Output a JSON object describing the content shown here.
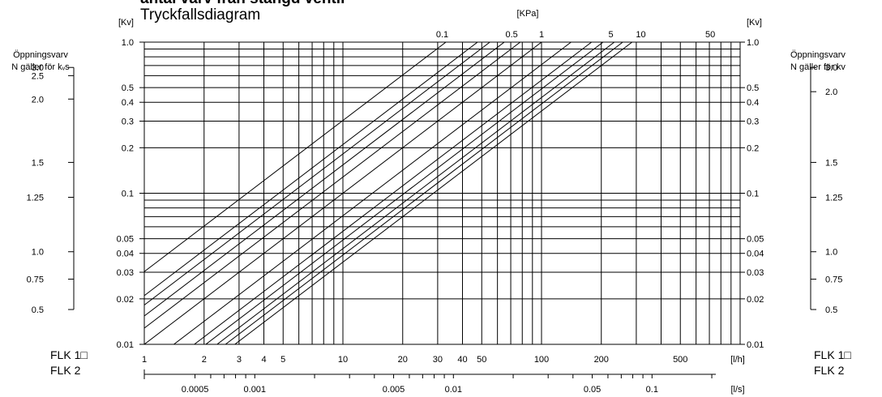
{
  "page": {
    "cut_title": "antal varv från stängd ventil",
    "title": "Tryckfallsdiagram"
  },
  "chart_data": {
    "type": "line",
    "title": "Tryckfallsdiagram",
    "x_axis_primary": {
      "unit_label": "[l/h]",
      "scale": "log",
      "range": [
        1,
        1000
      ],
      "tick_labels": [
        "1",
        "2",
        "3",
        "4",
        "5",
        "10",
        "20",
        "30",
        "40",
        "50",
        "100",
        "200",
        "500"
      ]
    },
    "x_axis_secondary": {
      "unit_label": "[l/s]",
      "scale": "log",
      "tick_labels": [
        "0.0005",
        "0.001",
        "0.005",
        "0.01",
        "0.05",
        "0.1"
      ]
    },
    "y_axis": {
      "unit_label": "[Kv]",
      "scale": "log",
      "range": [
        0.01,
        1.0
      ],
      "tick_labels": [
        "1.0",
        "0.5",
        "0.4",
        "0.3",
        "0.2",
        "0.1",
        "0.05",
        "0.04",
        "0.03",
        "0.02",
        "0.01"
      ]
    },
    "pressure_axis": {
      "unit_label": "[KPa]",
      "tick_labels": [
        "0.1",
        "0.5",
        "1",
        "5",
        "10",
        "50"
      ]
    },
    "opening_scale": {
      "title_line1": "Öppningsvarv",
      "title_line2_left": "N gäller för kᵥs",
      "title_line2_right": "N gäller för kv",
      "left_labels": [
        "3.0",
        "2.5",
        "2.0",
        "1.5",
        "1.25",
        "1.0",
        "0.75",
        "0.5"
      ],
      "left_kv": [
        0.68,
        0.6,
        0.42,
        0.16,
        0.094,
        0.041,
        0.027,
        0.017
      ],
      "right_labels": [
        "3.0",
        "2.0",
        "1.5",
        "1.25",
        "1.0",
        "0.75",
        "0.5"
      ],
      "right_kv": [
        0.68,
        0.47,
        0.16,
        0.094,
        0.041,
        0.027,
        0.017
      ]
    },
    "models": [
      "FLK 1□",
      "FLK 2"
    ],
    "series": [
      {
        "values": [
          0.0303,
          30.3
        ]
      },
      {
        "values": [
          0.021,
          21.0
        ]
      },
      {
        "values": [
          0.0182,
          18.2
        ]
      },
      {
        "values": [
          0.0154,
          15.4
        ]
      },
      {
        "values": [
          0.0128,
          12.8
        ]
      },
      {
        "values": [
          0.01,
          10.0
        ]
      },
      {
        "values": [
          0.0071,
          7.1
        ]
      },
      {
        "values": [
          0.0056,
          5.6
        ]
      },
      {
        "values": [
          0.0049,
          4.9
        ]
      },
      {
        "values": [
          0.0043,
          4.3
        ]
      },
      {
        "values": [
          0.0039,
          3.9
        ]
      },
      {
        "values": [
          0.0035,
          3.5
        ]
      }
    ],
    "series_x": [
      1,
      1000
    ],
    "grid": true
  }
}
